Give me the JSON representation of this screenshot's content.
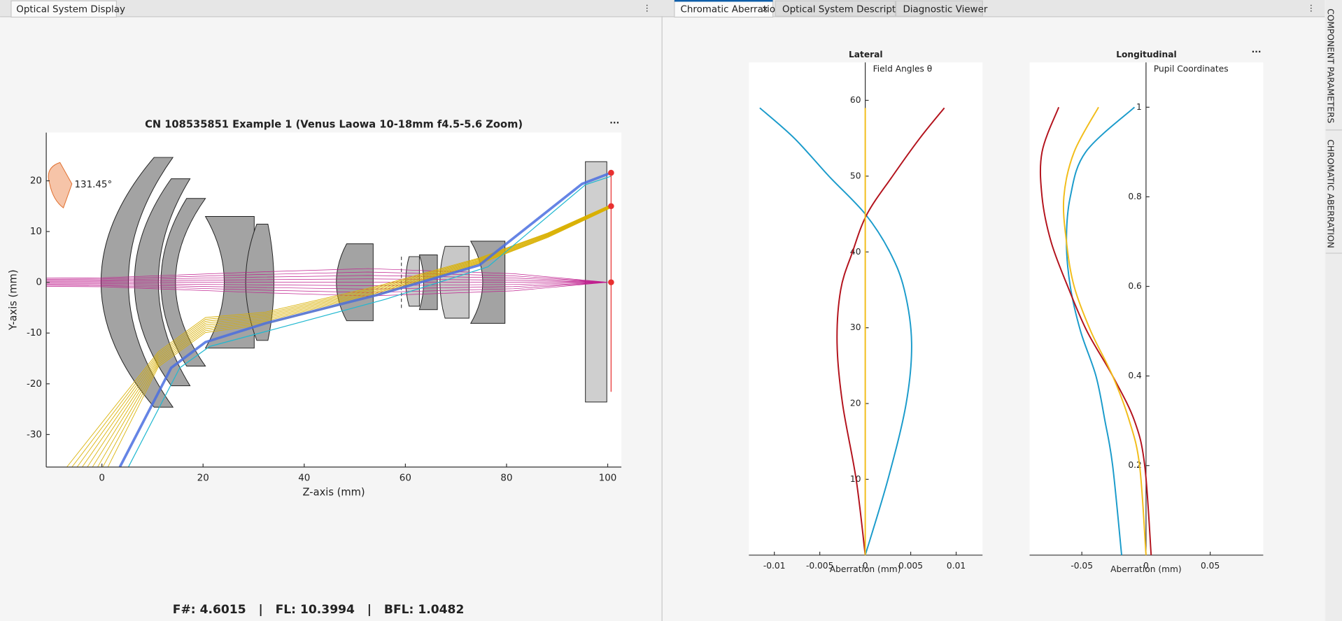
{
  "left_panel": {
    "tab": "Optical System Display"
  },
  "right_panel": {
    "tabs": [
      "Chromatic Aberration",
      "Optical System Description",
      "Diagnostic Viewer"
    ]
  },
  "side_tabs": [
    "COMPONENT PARAMETERS",
    "CHROMATIC ABERRATION"
  ],
  "footer": "F#: 4.6015   |   FL: 10.3994   |   BFL: 1.0482",
  "chart_data": [
    {
      "type": "ray-trace",
      "title": "CN 108535851 Example 1 (Venus Laowa 10-18mm f4.5-5.6 Zoom)",
      "xlabel": "Z-axis (mm)",
      "ylabel": "Y-axis (mm)",
      "annotation": "131.45°",
      "xlim": [
        -11,
        102.7
      ],
      "ylim": [
        -36.4,
        29.5
      ],
      "xticks": [
        0,
        20,
        40,
        60,
        80,
        100
      ],
      "yticks": [
        -30,
        -20,
        -10,
        0,
        10,
        20
      ]
    },
    {
      "type": "line",
      "title": "Lateral",
      "xlabel": "Aberration (mm)",
      "ylabel": "Field Angles θ",
      "xlim": [
        -0.0128,
        0.0129
      ],
      "ylim": [
        0,
        65
      ],
      "xticks": [
        -0.01,
        -0.005,
        0,
        0.005,
        0.01
      ],
      "yticks": [
        10,
        20,
        30,
        40,
        50,
        60
      ],
      "y": [
        0,
        10,
        20,
        28,
        35,
        40,
        45,
        50,
        55,
        59
      ],
      "series": [
        {
          "color": "#1a9bcb",
          "values": [
            0,
            0.0025,
            0.0045,
            0.0051,
            0.0043,
            0.0027,
            0,
            -0.004,
            -0.0078,
            -0.0116
          ]
        },
        {
          "color": "#b3121c",
          "values": [
            0,
            -0.001,
            -0.0025,
            -0.0031,
            -0.0027,
            -0.0014,
            0.0002,
            0.003,
            0.006,
            0.0087
          ]
        },
        {
          "color": "#f2bd1a",
          "values": [
            0,
            0,
            0,
            0,
            0,
            0,
            0,
            0,
            0,
            0
          ]
        }
      ]
    },
    {
      "type": "line",
      "title": "Longitudinal",
      "xlabel": "Aberration (mm)",
      "ylabel": "Pupil Coordinates",
      "xlim": [
        -0.0907,
        0.0913
      ],
      "ylim": [
        0,
        1.1
      ],
      "xticks": [
        -0.05,
        0,
        0.05
      ],
      "yticks": [
        0.2,
        0.4,
        0.6,
        0.8,
        1
      ],
      "y": [
        0,
        0.2,
        0.3,
        0.4,
        0.5,
        0.6,
        0.7,
        0.8,
        0.9,
        1
      ],
      "series": [
        {
          "color": "#1a9bcb",
          "values": [
            -0.019,
            -0.026,
            -0.032,
            -0.039,
            -0.051,
            -0.059,
            -0.062,
            -0.059,
            -0.047,
            -0.009
          ]
        },
        {
          "color": "#b3121c",
          "values": [
            0.004,
            -0.001,
            -0.009,
            -0.026,
            -0.046,
            -0.061,
            -0.074,
            -0.081,
            -0.081,
            -0.068
          ]
        },
        {
          "color": "#f2bd1a",
          "values": [
            0,
            -0.005,
            -0.013,
            -0.026,
            -0.043,
            -0.056,
            -0.062,
            -0.064,
            -0.056,
            -0.037
          ]
        }
      ]
    }
  ]
}
